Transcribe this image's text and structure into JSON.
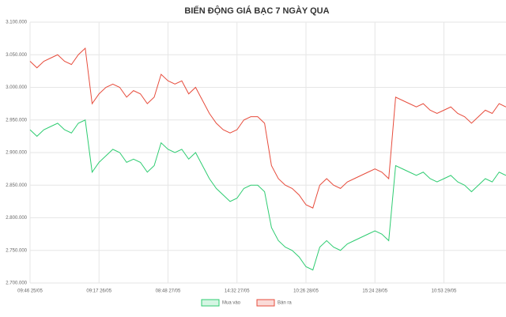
{
  "chart_data": {
    "type": "line",
    "title": "BIẾN ĐỘNG GIÁ BẠC 7 NGÀY QUA",
    "categories": [
      "09:46 25/05",
      null,
      null,
      null,
      null,
      null,
      null,
      null,
      null,
      null,
      "09:17 26/05",
      null,
      null,
      null,
      null,
      null,
      null,
      null,
      null,
      null,
      "08:48 27/05",
      null,
      null,
      null,
      null,
      null,
      null,
      null,
      null,
      null,
      "14:32 27/05",
      null,
      null,
      null,
      null,
      null,
      null,
      null,
      null,
      null,
      "10:26 28/05",
      null,
      null,
      null,
      null,
      null,
      null,
      null,
      null,
      null,
      "15:24 28/05",
      null,
      null,
      null,
      null,
      null,
      null,
      null,
      null,
      null,
      "10:53 29/05",
      null,
      null,
      null,
      null,
      null,
      null,
      null,
      null,
      null
    ],
    "series": [
      {
        "name": "Mua vào",
        "color": "#2ecc71",
        "values": [
          2935000,
          2925000,
          2935000,
          2940000,
          2945000,
          2935000,
          2930000,
          2945000,
          2950000,
          2870000,
          2885000,
          2895000,
          2905000,
          2900000,
          2885000,
          2890000,
          2885000,
          2870000,
          2880000,
          2915000,
          2905000,
          2900000,
          2905000,
          2890000,
          2900000,
          2880000,
          2860000,
          2845000,
          2835000,
          2825000,
          2830000,
          2845000,
          2850000,
          2850000,
          2840000,
          2785000,
          2765000,
          2755000,
          2750000,
          2740000,
          2725000,
          2720000,
          2755000,
          2765000,
          2755000,
          2750000,
          2760000,
          2765000,
          2770000,
          2775000,
          2780000,
          2775000,
          2765000,
          2880000,
          2875000,
          2870000,
          2865000,
          2870000,
          2860000,
          2855000,
          2860000,
          2865000,
          2855000,
          2850000,
          2840000,
          2850000,
          2860000,
          2855000,
          2870000,
          2865000
        ]
      },
      {
        "name": "Bán ra",
        "color": "#e74c3c",
        "values": [
          3040000,
          3030000,
          3040000,
          3045000,
          3050000,
          3040000,
          3035000,
          3050000,
          3060000,
          2975000,
          2990000,
          3000000,
          3005000,
          3000000,
          2985000,
          2995000,
          2990000,
          2975000,
          2985000,
          3020000,
          3010000,
          3005000,
          3010000,
          2990000,
          3000000,
          2980000,
          2960000,
          2945000,
          2935000,
          2930000,
          2935000,
          2950000,
          2955000,
          2955000,
          2945000,
          2880000,
          2860000,
          2850000,
          2845000,
          2835000,
          2820000,
          2815000,
          2850000,
          2860000,
          2850000,
          2845000,
          2855000,
          2860000,
          2865000,
          2870000,
          2875000,
          2870000,
          2860000,
          2985000,
          2980000,
          2975000,
          2970000,
          2975000,
          2965000,
          2960000,
          2965000,
          2970000,
          2960000,
          2955000,
          2945000,
          2955000,
          2965000,
          2960000,
          2975000,
          2970000
        ]
      }
    ],
    "ylim": [
      2700000,
      3100000
    ],
    "yticks": [
      {
        "value": 2700000,
        "label": "2.700.000"
      },
      {
        "value": 2750000,
        "label": "2.750.000"
      },
      {
        "value": 2800000,
        "label": "2.800.000"
      },
      {
        "value": 2850000,
        "label": "2.850.000"
      },
      {
        "value": 2900000,
        "label": "2.900.000"
      },
      {
        "value": 2950000,
        "label": "2.950.000"
      },
      {
        "value": 3000000,
        "label": "3.000.000"
      },
      {
        "value": 3050000,
        "label": "3.050.000"
      },
      {
        "value": 3100000,
        "label": "3.100.000"
      }
    ],
    "grid": true,
    "legend": "bottom"
  }
}
